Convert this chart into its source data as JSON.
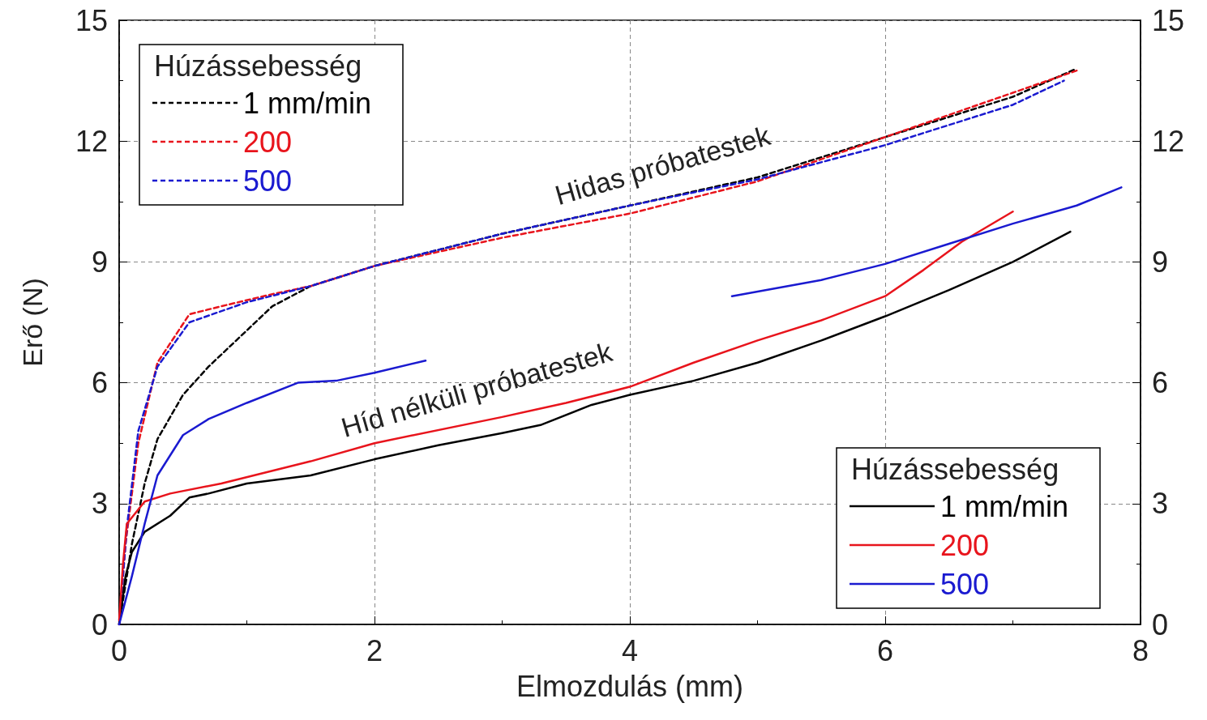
{
  "chart_data": {
    "type": "line",
    "xlabel": "Elmozdulás (mm)",
    "ylabel": "Erő (N)",
    "legend_title": "Húzássebesség",
    "xlim": [
      0,
      8
    ],
    "xticks": [
      0,
      2,
      4,
      6,
      8
    ],
    "ylim": [
      0,
      15
    ],
    "yticks": [
      0,
      3,
      6,
      9,
      12,
      15
    ],
    "y2lim": [
      0,
      15
    ],
    "y2ticks": [
      0,
      3,
      6,
      9,
      12,
      15
    ],
    "grid": true,
    "legend": [
      "top left",
      "bottom right"
    ],
    "marker": "none",
    "annotations": [
      "Hidas próbatestek",
      "Híd nélküli próbatestek"
    ],
    "series": [
      {
        "name": "1 mm/min",
        "color": "#000000",
        "line_style": "dotted",
        "x": [
          0,
          0.1,
          0.2,
          0.3,
          0.5,
          0.7,
          1.0,
          1.2,
          1.5,
          2,
          3,
          4,
          5,
          6,
          7,
          7.5
        ],
        "values": [
          0,
          2,
          3.5,
          4.6,
          5.7,
          6.4,
          7.3,
          7.9,
          8.4,
          8.9,
          9.7,
          10.4,
          11.1,
          12.1,
          13.1,
          13.8
        ]
      },
      {
        "name": "200",
        "color": "#e8141c",
        "line_style": "dotted",
        "x": [
          0,
          0.05,
          0.15,
          0.3,
          0.55,
          0.8,
          1.2,
          1.5,
          2,
          3,
          4,
          5,
          6,
          7,
          7.5
        ],
        "values": [
          0,
          2,
          4.5,
          6.5,
          7.7,
          7.9,
          8.2,
          8.4,
          8.9,
          9.6,
          10.2,
          11.0,
          12.1,
          13.2,
          13.75
        ]
      },
      {
        "name": "500",
        "color": "#1a1ad0",
        "line_style": "dotted",
        "x": [
          0,
          0.06,
          0.15,
          0.3,
          0.55,
          1,
          1.5,
          2,
          3,
          4,
          5,
          6,
          7,
          7.4
        ],
        "values": [
          0,
          2.4,
          4.8,
          6.4,
          7.5,
          8.0,
          8.4,
          8.9,
          9.7,
          10.4,
          11.05,
          11.9,
          12.9,
          13.5
        ]
      },
      {
        "name": "1 mm/min",
        "color": "#000000",
        "line_style": "solid",
        "x": [
          0,
          0.05,
          0.1,
          0.2,
          0.4,
          0.55,
          0.7,
          1.0,
          1.5,
          2,
          2.5,
          3,
          3.3,
          3.7,
          4,
          4.5,
          5,
          5.5,
          6,
          6.5,
          7,
          7.45
        ],
        "values": [
          0,
          1.2,
          1.8,
          2.3,
          2.7,
          3.15,
          3.25,
          3.5,
          3.7,
          4.1,
          4.45,
          4.75,
          4.95,
          5.45,
          5.7,
          6.05,
          6.5,
          7.05,
          7.65,
          8.3,
          9.0,
          9.75
        ]
      },
      {
        "name": "200",
        "color": "#e8141c",
        "line_style": "solid",
        "x": [
          0,
          0.03,
          0.06,
          0.2,
          0.4,
          0.8,
          1.5,
          2,
          3,
          3.5,
          4,
          4.5,
          5,
          5.5,
          6,
          6.3,
          6.6,
          7.0
        ],
        "values": [
          0.1,
          1.5,
          2.5,
          3.05,
          3.25,
          3.5,
          4.05,
          4.5,
          5.15,
          5.5,
          5.9,
          6.5,
          7.05,
          7.55,
          8.15,
          8.8,
          9.5,
          10.25
        ]
      },
      {
        "name": "500",
        "color": "#1a1ad0",
        "line_style": "solid",
        "x": [
          0,
          0.1,
          0.2,
          0.3,
          0.5,
          0.7,
          1.0,
          1.4,
          1.7,
          2,
          2.4,
          3.6,
          4.8,
          5.5,
          6,
          6.5,
          7,
          7.5,
          7.85
        ],
        "values": [
          0,
          1.2,
          2.5,
          3.7,
          4.7,
          5.1,
          5.5,
          6.0,
          6.05,
          6.25,
          6.55,
          null,
          8.15,
          8.55,
          8.95,
          9.45,
          9.95,
          10.4,
          10.85
        ]
      }
    ]
  }
}
